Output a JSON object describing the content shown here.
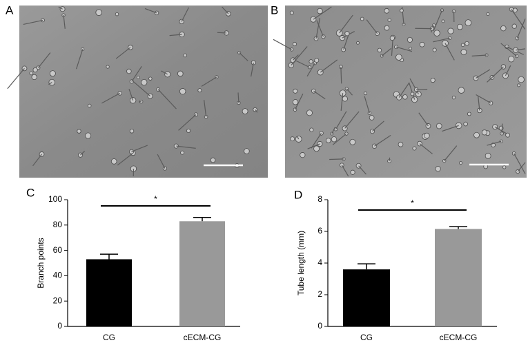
{
  "panels": [
    "A",
    "B",
    "C",
    "D"
  ],
  "chart_data": [
    {
      "type": "bar",
      "ylabel": "Branch points",
      "categories": [
        "CG",
        "cECM-CG"
      ],
      "values": [
        53,
        83
      ],
      "errors": [
        4,
        3
      ],
      "colors": [
        "#000000",
        "#999999"
      ],
      "ylim": [
        0,
        100
      ],
      "yticks": [
        0,
        20,
        40,
        60,
        80,
        100
      ],
      "annotation": "*"
    },
    {
      "type": "bar",
      "ylabel": "Tube length (mm)",
      "categories": [
        "CG",
        "cECM-CG"
      ],
      "values": [
        3.6,
        6.15
      ],
      "errors": [
        0.35,
        0.15
      ],
      "colors": [
        "#000000",
        "#999999"
      ],
      "ylim": [
        0,
        8
      ],
      "yticks": [
        0,
        2,
        4,
        6,
        8
      ],
      "annotation": "*"
    }
  ]
}
